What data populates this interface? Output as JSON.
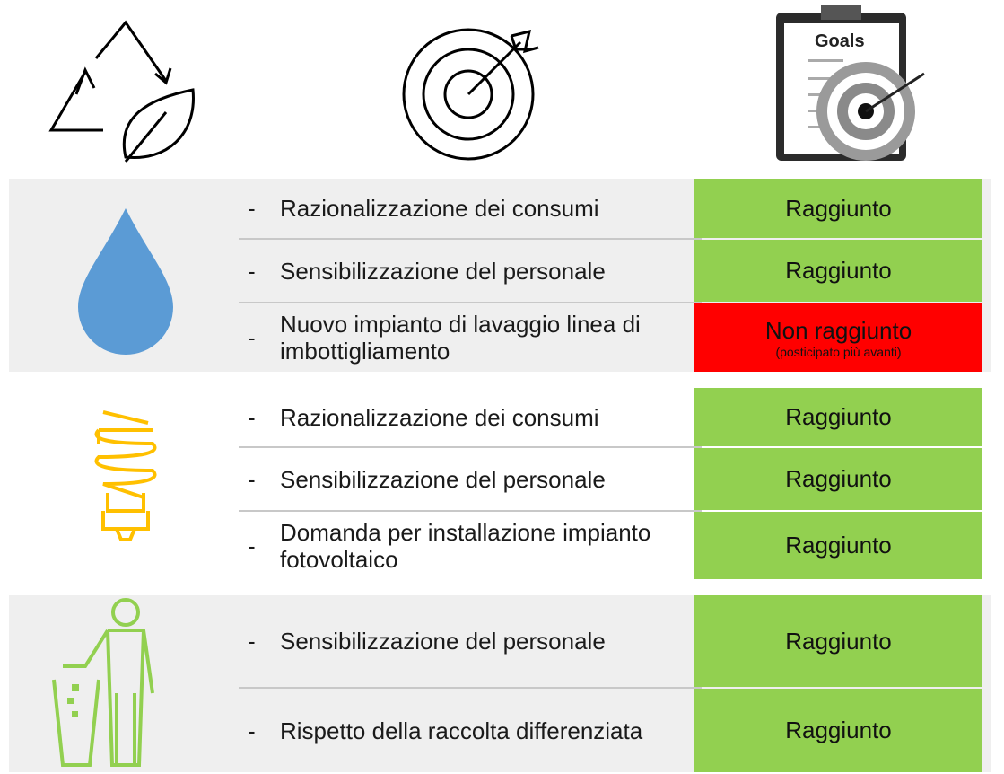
{
  "goals_icon_label": "Goals",
  "sections": [
    {
      "rows": [
        {
          "text": "Razionalizzazione dei consumi",
          "status": "Raggiunto",
          "color": "#92d050"
        },
        {
          "text": "Sensibilizzazione del personale",
          "status": "Raggiunto",
          "color": "#92d050"
        },
        {
          "text": "Nuovo impianto di lavaggio linea di imbottigliamento",
          "status": "Non raggiunto",
          "note": "(posticipato più avanti)",
          "color": "#ff0000"
        }
      ]
    },
    {
      "rows": [
        {
          "text": "Razionalizzazione dei consumi",
          "status": "Raggiunto",
          "color": "#92d050"
        },
        {
          "text": "Sensibilizzazione del personale",
          "status": "Raggiunto",
          "color": "#92d050"
        },
        {
          "text": "Domanda per installazione impianto fotovoltaico",
          "status": "Raggiunto",
          "color": "#92d050"
        }
      ]
    },
    {
      "rows": [
        {
          "text": "Sensibilizzazione del personale",
          "status": "Raggiunto",
          "color": "#92d050"
        },
        {
          "text": "Rispetto della raccolta differenziata",
          "status": "Raggiunto",
          "color": "#92d050"
        }
      ]
    }
  ]
}
